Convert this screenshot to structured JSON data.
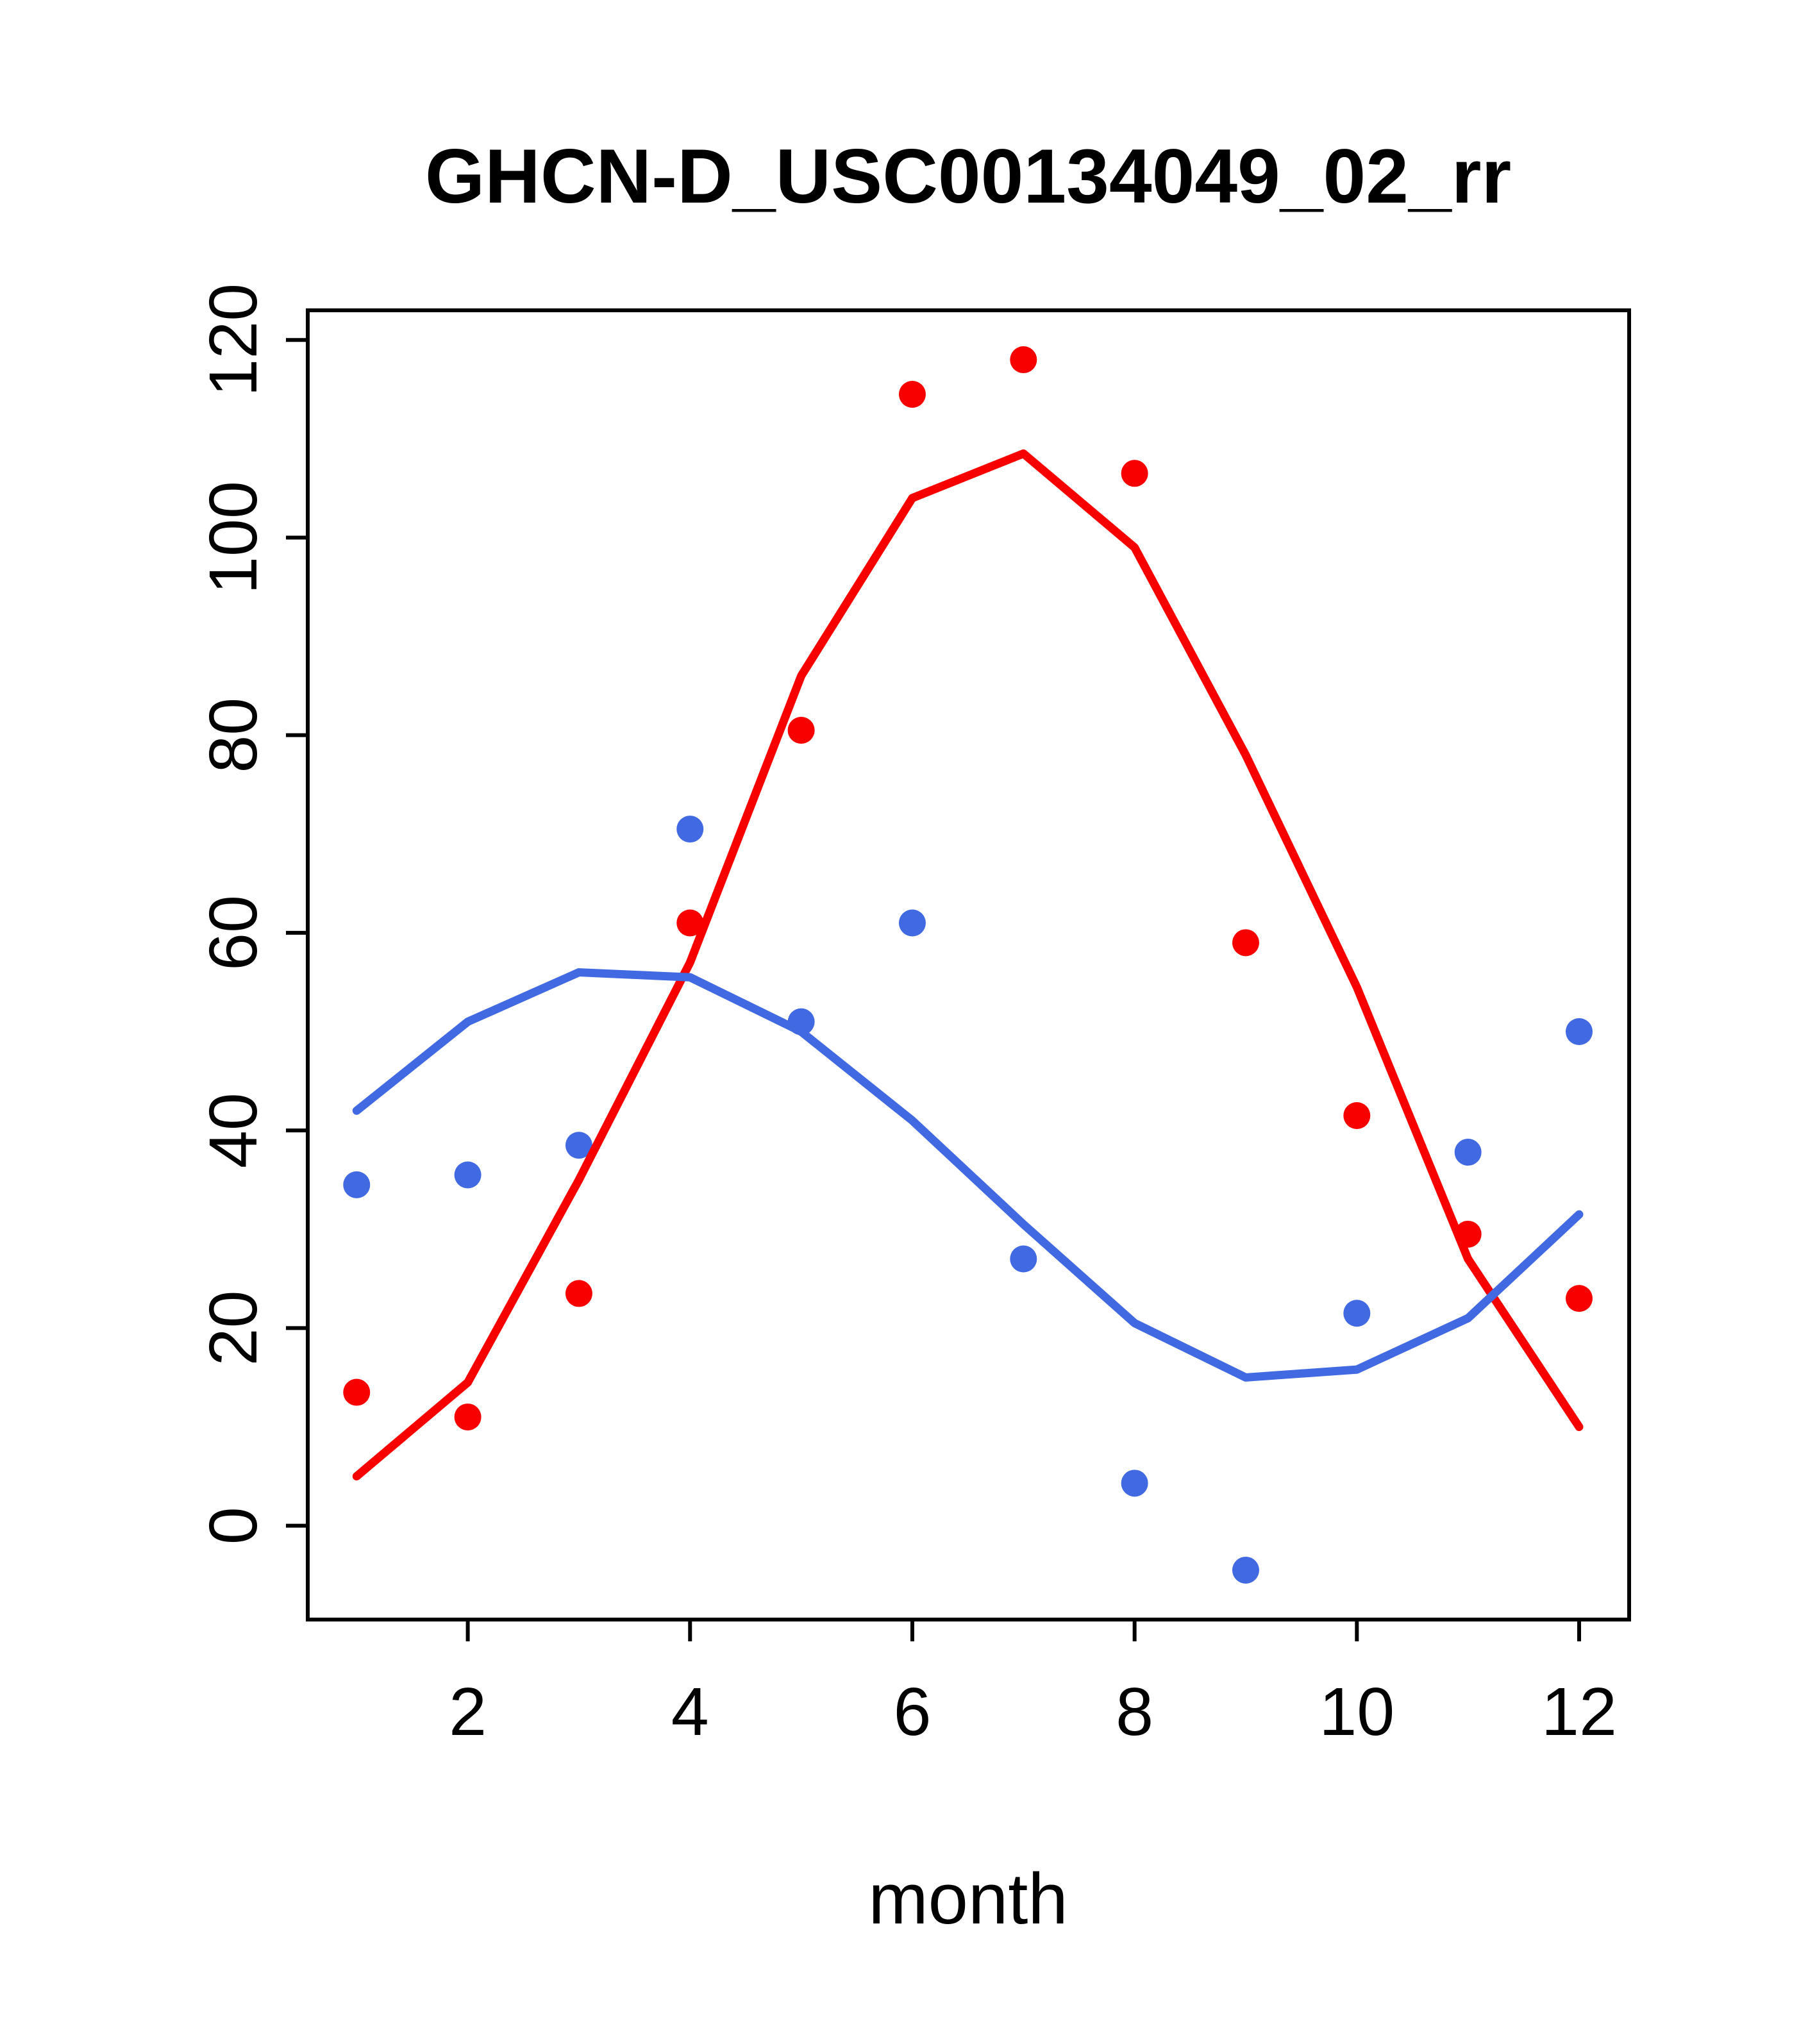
{
  "page": {
    "background": "#ffffff",
    "axis_color": "#000000"
  },
  "chart_data": {
    "type": "scatter",
    "title": "GHCN-D_USC00134049_02_rr",
    "xlabel": "month",
    "ylabel": "",
    "grid": false,
    "legend": "none",
    "xlim": [
      0.56,
      12.45
    ],
    "ylim": [
      -9.5,
      123
    ],
    "x_ticks": [
      2,
      4,
      6,
      8,
      10,
      12
    ],
    "y_ticks": [
      0,
      20,
      40,
      60,
      80,
      100,
      120
    ],
    "x": [
      1,
      2,
      3,
      4,
      5,
      6,
      7,
      8,
      9,
      10,
      11,
      12
    ],
    "series": [
      {
        "name": "red-series-points",
        "label": "red monthly values (points)",
        "type": "points",
        "color": "#F80000",
        "values": [
          13.5,
          11,
          23.5,
          61,
          80.5,
          114.5,
          118,
          106.5,
          59,
          41.5,
          29.5,
          23
        ]
      },
      {
        "name": "blue-series-points",
        "label": "blue monthly values (points)",
        "type": "points",
        "color": "#4169E1",
        "values": [
          34.5,
          35.5,
          38.5,
          70.5,
          51,
          61,
          27,
          4.3,
          -4.5,
          21.5,
          37.8,
          50
        ]
      },
      {
        "name": "red-series-smooth",
        "label": "red smoothed line",
        "type": "line",
        "color": "#F80000",
        "values": [
          5,
          14.5,
          35,
          57,
          86,
          104,
          108.5,
          99,
          78,
          54.5,
          27,
          10
        ]
      },
      {
        "name": "blue-series-smooth",
        "label": "blue smoothed line",
        "type": "line",
        "color": "#4169E1",
        "values": [
          42,
          51,
          56,
          55.5,
          50,
          41,
          30.5,
          20.5,
          15,
          15.8,
          21,
          31.5
        ]
      }
    ]
  }
}
